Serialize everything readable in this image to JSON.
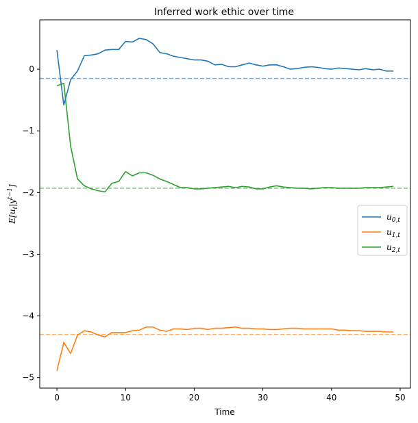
{
  "chart_data": {
    "type": "line",
    "title": "Inferred work ethic over time",
    "xlabel": "Time",
    "ylabel": "E[u_t|y^{t-1}]",
    "xlim": [
      -2.5,
      51.5
    ],
    "ylim": [
      -5.17,
      0.8
    ],
    "xticks": [
      0,
      10,
      20,
      30,
      40,
      50
    ],
    "yticks": [
      0,
      -1,
      -2,
      -3,
      -4,
      -5
    ],
    "grid": false,
    "legend_position": "center-right",
    "x": [
      0,
      1,
      2,
      3,
      4,
      5,
      6,
      7,
      8,
      9,
      10,
      11,
      12,
      13,
      14,
      15,
      16,
      17,
      18,
      19,
      20,
      21,
      22,
      23,
      24,
      25,
      26,
      27,
      28,
      29,
      30,
      31,
      32,
      33,
      34,
      35,
      36,
      37,
      38,
      39,
      40,
      41,
      42,
      43,
      44,
      45,
      46,
      47,
      48,
      49
    ],
    "series": [
      {
        "name": "u_{0,t}",
        "color": "#1f77b4",
        "values": [
          0.31,
          -0.58,
          -0.17,
          -0.03,
          0.22,
          0.23,
          0.25,
          0.31,
          0.32,
          0.32,
          0.45,
          0.44,
          0.5,
          0.48,
          0.41,
          0.27,
          0.25,
          0.21,
          0.19,
          0.17,
          0.15,
          0.15,
          0.13,
          0.07,
          0.08,
          0.04,
          0.04,
          0.07,
          0.1,
          0.07,
          0.05,
          0.07,
          0.07,
          0.04,
          0.0,
          0.01,
          0.03,
          0.04,
          0.03,
          0.01,
          0.0,
          0.02,
          0.01,
          0.0,
          -0.01,
          0.01,
          -0.01,
          0.0,
          -0.03,
          -0.03
        ]
      },
      {
        "name": "u_{1,t}",
        "color": "#ff7f0e",
        "values": [
          -4.89,
          -4.43,
          -4.61,
          -4.31,
          -4.24,
          -4.26,
          -4.31,
          -4.34,
          -4.27,
          -4.27,
          -4.27,
          -4.24,
          -4.23,
          -4.18,
          -4.18,
          -4.23,
          -4.25,
          -4.21,
          -4.21,
          -4.22,
          -4.2,
          -4.2,
          -4.22,
          -4.2,
          -4.2,
          -4.19,
          -4.18,
          -4.2,
          -4.2,
          -4.21,
          -4.21,
          -4.22,
          -4.22,
          -4.21,
          -4.2,
          -4.2,
          -4.21,
          -4.21,
          -4.21,
          -4.21,
          -4.21,
          -4.23,
          -4.23,
          -4.24,
          -4.24,
          -4.25,
          -4.25,
          -4.25,
          -4.26,
          -4.26
        ]
      },
      {
        "name": "u_{2,t}",
        "color": "#2ca02c",
        "values": [
          -0.27,
          -0.23,
          -1.25,
          -1.78,
          -1.89,
          -1.94,
          -1.97,
          -1.99,
          -1.85,
          -1.82,
          -1.66,
          -1.73,
          -1.68,
          -1.68,
          -1.72,
          -1.78,
          -1.82,
          -1.87,
          -1.92,
          -1.92,
          -1.94,
          -1.94,
          -1.93,
          -1.92,
          -1.91,
          -1.9,
          -1.92,
          -1.9,
          -1.91,
          -1.94,
          -1.94,
          -1.91,
          -1.89,
          -1.91,
          -1.92,
          -1.93,
          -1.93,
          -1.94,
          -1.93,
          -1.92,
          -1.92,
          -1.93,
          -1.93,
          -1.93,
          -1.93,
          -1.92,
          -1.92,
          -1.92,
          -1.91,
          -1.9
        ]
      }
    ],
    "reference_lines": [
      {
        "y": -0.15,
        "color": "#1f77b4",
        "style": "dashed"
      },
      {
        "y": -4.3,
        "color": "#ff7f0e",
        "style": "dashed"
      },
      {
        "y": -1.93,
        "color": "#2ca02c",
        "style": "dashed"
      }
    ]
  }
}
